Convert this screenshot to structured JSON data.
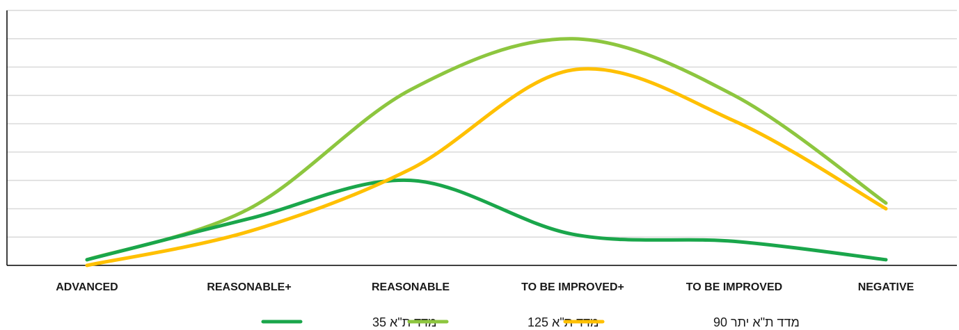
{
  "chart_data": {
    "type": "line",
    "smooth": true,
    "categories": [
      "ADVANCED",
      "REASONABLE+",
      "REASONABLE",
      "TO BE IMPROVED+",
      "TO BE IMPROVED",
      "NEGATIVE"
    ],
    "ylim": [
      0,
      9
    ],
    "grid": true,
    "y_tick_labels_shown": false,
    "legend_position": "bottom",
    "series": [
      {
        "name": "מדד ת\"א 35",
        "color": "#1aa64b",
        "values": [
          0.2,
          1.65,
          3.0,
          1.1,
          0.85,
          0.2
        ]
      },
      {
        "name": "מדד ת\"א 125",
        "color": "#8dc63f",
        "values": [
          0.2,
          2.0,
          6.2,
          8.0,
          6.0,
          2.2
        ]
      },
      {
        "name": "מדד ת\"א יתר 90",
        "color": "#ffc000",
        "values": [
          0.0,
          1.2,
          3.4,
          6.9,
          5.1,
          2.0
        ]
      }
    ]
  }
}
